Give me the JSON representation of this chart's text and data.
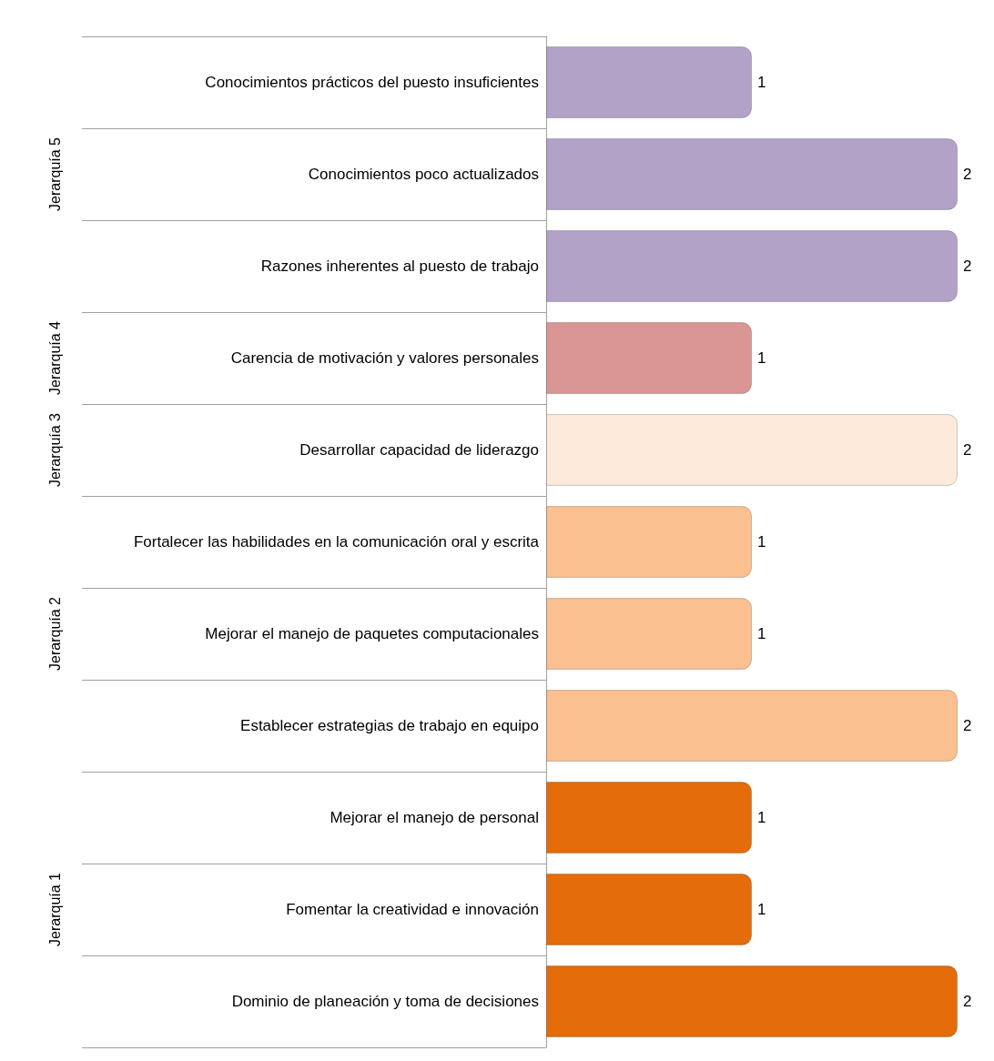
{
  "chart_data": {
    "type": "bar",
    "orientation": "horizontal",
    "data_labels": true,
    "categories": [
      "Conocimientos prácticos del puesto insuficientes",
      "Conocimientos poco actualizados",
      "Razones inherentes al puesto de trabajo",
      "Carencia de motivación y valores personales",
      "Desarrollar capacidad de liderazgo",
      "Fortalecer las habilidades en la comunicación oral y escrita",
      "Mejorar el manejo de paquetes computacionales",
      "Establecer estrategias de trabajo en equipo",
      "Mejorar el manejo de personal",
      "Fomentar la creatividad e innovación",
      "Dominio de planeación y toma de decisiones"
    ],
    "values": [
      1,
      2,
      2,
      1,
      2,
      1,
      1,
      2,
      1,
      1,
      2
    ],
    "colors": [
      "#b3a2c7",
      "#b3a2c7",
      "#b3a2c7",
      "#d99694",
      "#fdeada",
      "#fac090",
      "#fac090",
      "#fac090",
      "#e46c0a",
      "#e46c0a",
      "#e46c0a"
    ],
    "annotations": [
      "Jerarquía 5",
      "Jerarquía 4",
      "Jerarquía 3",
      "Jerarquía 2",
      "Jerarquía 1"
    ]
  }
}
